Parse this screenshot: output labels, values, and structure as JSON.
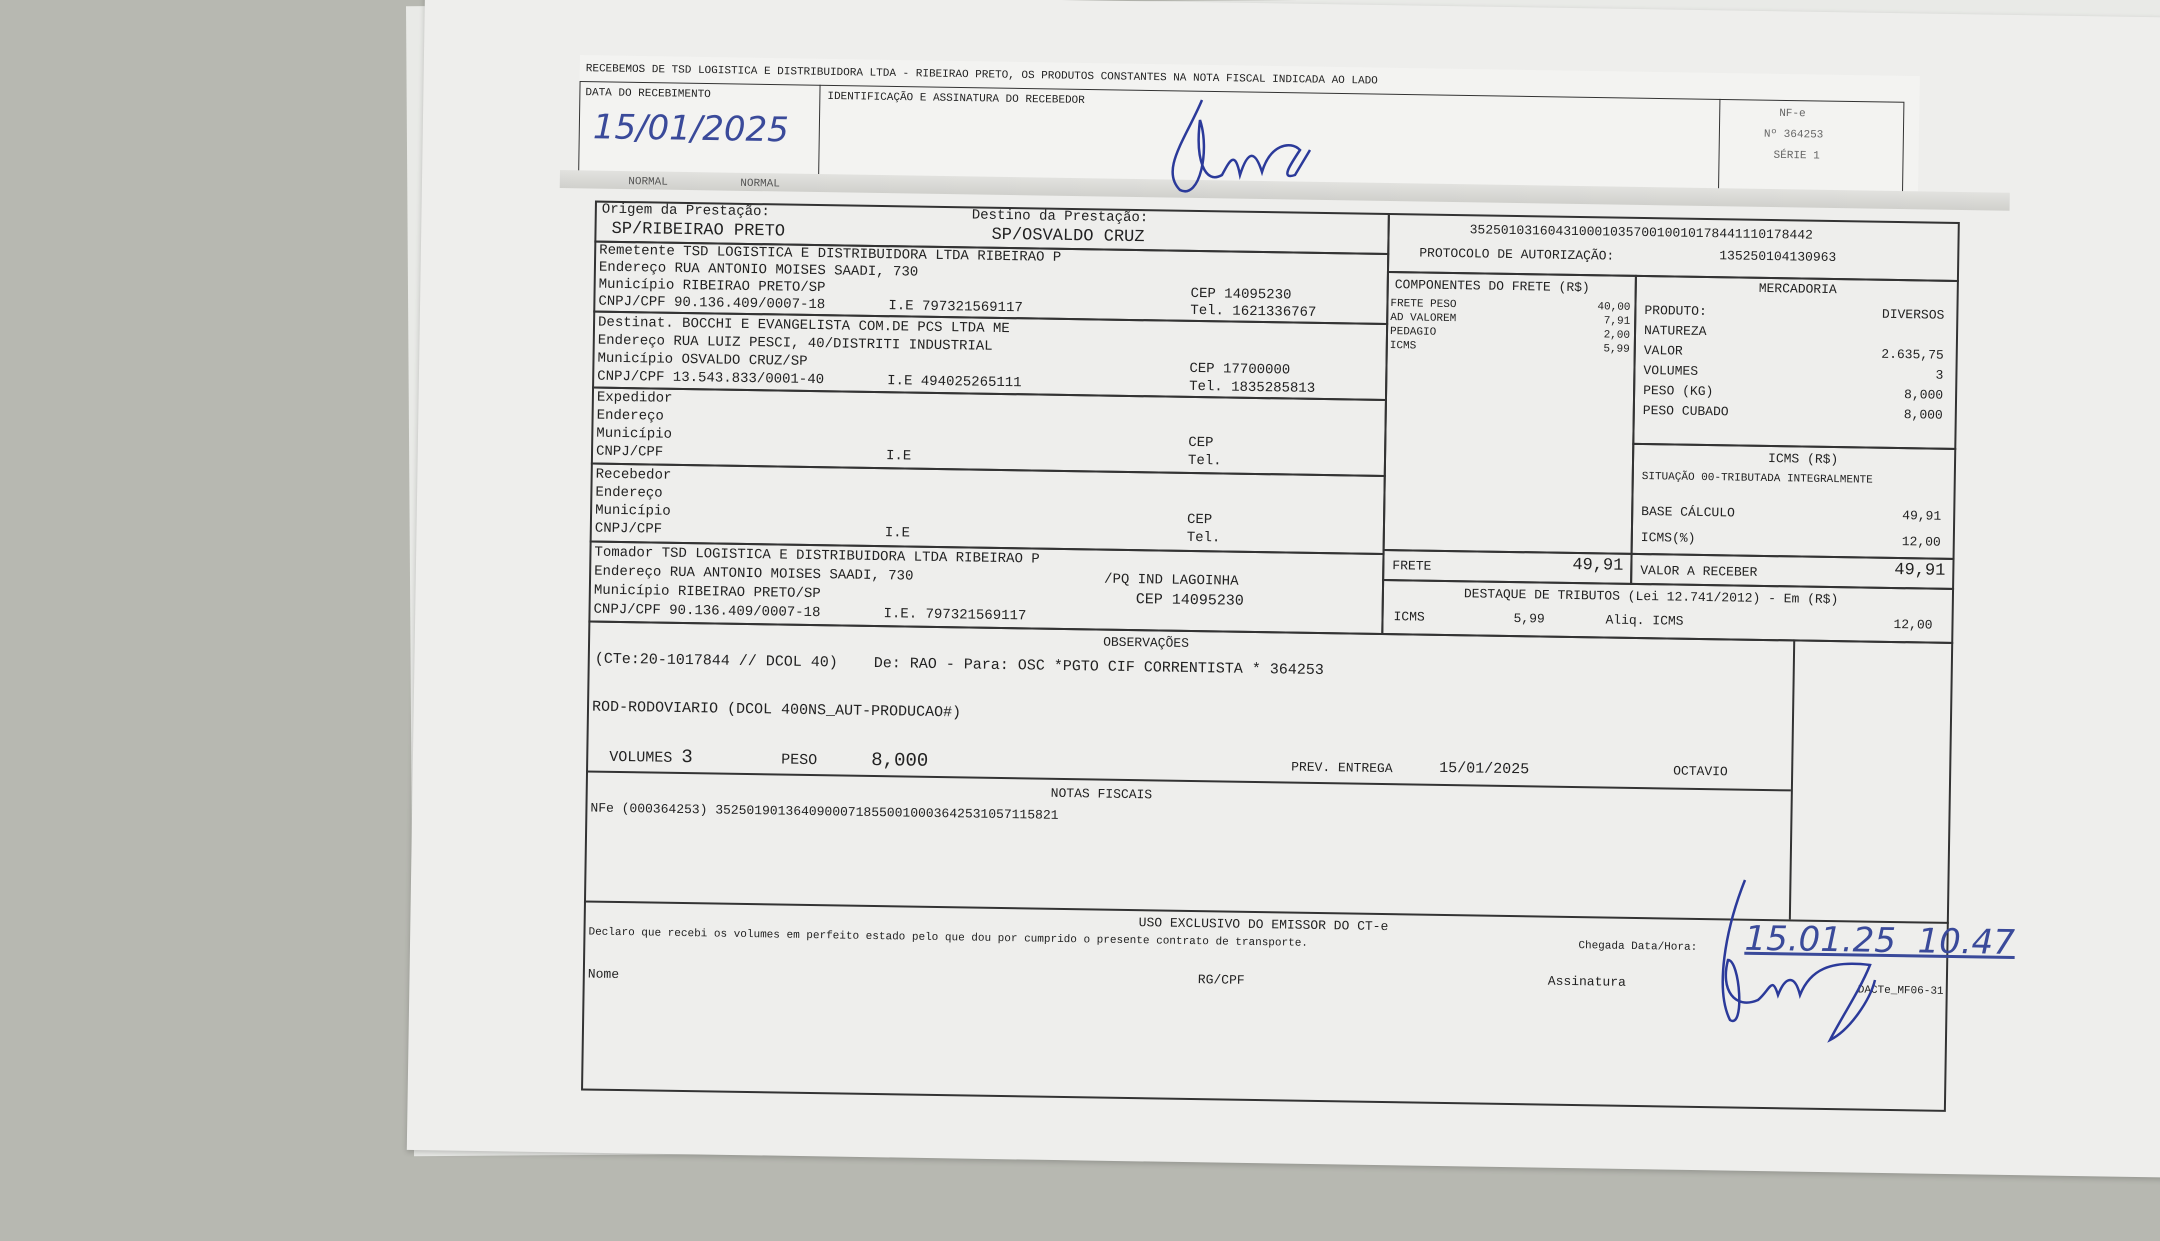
{
  "stub": {
    "header": "RECEBEMOS DE TSD LOGISTICA E DISTRIBUIDORA LTDA - RIBEIRAO PRETO, OS PRODUTOS CONSTANTES NA NOTA FISCAL INDICADA AO LADO",
    "date_label": "DATA DO RECEBIMENTO",
    "date_value": "15/01/2025",
    "id_label": "IDENTIFICAÇÃO E ASSINATURA DO RECEBEDOR",
    "nf_label": "NF-e",
    "nf_number": "Nº 364253",
    "serie": "SÉRIE 1"
  },
  "top": {
    "normal1": "NORMAL",
    "normal2": "NORMAL",
    "origem_label": "Origem da Prestação:",
    "origem": "SP/RIBEIRAO PRETO",
    "destino_label": "Destino da Prestação:",
    "destino": "SP/OSVALDO CRUZ",
    "chave": "35250103160431000103570010010178441110178442",
    "protocolo_label": "PROTOCOLO DE AUTORIZAÇÃO:",
    "protocolo": "135250104130963"
  },
  "remetente": {
    "label": "Remetente",
    "nome": "TSD LOGISTICA E DISTRIBUIDORA LTDA RIBEIRAO P",
    "end_label": "Endereço",
    "endereco": "RUA ANTONIO MOISES SAADI, 730",
    "mun_label": "Município",
    "municipio": "RIBEIRAO PRETO/SP",
    "cnpj_label": "CNPJ/CPF",
    "cnpj": "90.136.409/0007-18",
    "ie_label": "I.E",
    "ie": "797321569117",
    "cep_label": "CEP",
    "cep": "14095230",
    "tel_label": "Tel.",
    "tel": "1621336767"
  },
  "destinatario": {
    "label": "Destinat.",
    "nome": "BOCCHI E EVANGELISTA COM.DE PCS LTDA ME",
    "end_label": "Endereço",
    "endereco": "RUA LUIZ PESCI, 40/DISTRITI INDUSTRIAL",
    "mun_label": "Município",
    "municipio": "OSVALDO CRUZ/SP",
    "cnpj_label": "CNPJ/CPF",
    "cnpj": "13.543.833/0001-40",
    "ie_label": "I.E",
    "ie": "494025265111",
    "cep_label": "CEP",
    "cep": "17700000",
    "tel_label": "Tel.",
    "tel": "1835285813"
  },
  "expedidor": {
    "label": "Expedidor",
    "end_label": "Endereço",
    "mun_label": "Município",
    "cnpj_label": "CNPJ/CPF",
    "ie_label": "I.E",
    "cep_label": "CEP",
    "tel_label": "Tel."
  },
  "recebedor": {
    "label": "Recebedor",
    "end_label": "Endereço",
    "mun_label": "Município",
    "cnpj_label": "CNPJ/CPF",
    "ie_label": "I.E",
    "cep_label": "CEP",
    "tel_label": "Tel."
  },
  "tomador": {
    "label": "Tomador",
    "nome": "TSD LOGISTICA E DISTRIBUIDORA LTDA RIBEIRAO P",
    "end_label": "Endereço",
    "endereco": "RUA ANTONIO MOISES SAADI, 730",
    "bairro": "/PQ IND LAGOINHA",
    "mun_label": "Município",
    "municipio": "RIBEIRAO PRETO/SP",
    "cep_label": "CEP",
    "cep": "14095230",
    "cnpj_label": "CNPJ/CPF",
    "cnpj": "90.136.409/0007-18",
    "ie_label": "I.E.",
    "ie": "797321569117"
  },
  "componentes": {
    "title": "COMPONENTES DO FRETE (R$)",
    "items": [
      {
        "label": "FRETE PESO",
        "value": "40,00"
      },
      {
        "label": "AD VALOREM",
        "value": "7,91"
      },
      {
        "label": "PEDAGIO",
        "value": "2,00"
      },
      {
        "label": "ICMS",
        "value": "5,99"
      }
    ],
    "frete_label": "FRETE",
    "frete": "49,91"
  },
  "mercadoria": {
    "title": "MERCADORIA",
    "produto_label": "PRODUTO:",
    "produto": "DIVERSOS",
    "natureza_label": "NATUREZA",
    "valor_label": "VALOR",
    "valor": "2.635,75",
    "volumes_label": "VOLUMES",
    "volumes": "3",
    "peso_label": "PESO (KG)",
    "peso": "8,000",
    "cubado_label": "PESO CUBADO",
    "cubado": "8,000"
  },
  "icms": {
    "title": "ICMS (R$)",
    "situacao": "SITUAÇÃO 00-TRIBUTADA INTEGRALMENTE",
    "base_label": "BASE CÁLCULO",
    "base": "49,91",
    "aliq_label": "ICMS(%)",
    "aliq": "12,00",
    "receber_label": "VALOR A RECEBER",
    "receber": "49,91"
  },
  "tributos": {
    "title": "DESTAQUE DE TRIBUTOS (Lei 12.741/2012) - Em (R$)",
    "icms_label": "ICMS",
    "icms": "5,99",
    "aliq_label": "Aliq. ICMS",
    "aliq": "12,00"
  },
  "obs": {
    "title": "OBSERVAÇÕES",
    "line1": "(CTe:20-1017844 // DCOL 40)    De: RAO - Para: OSC *PGTO CIF CORRENTISTA * 364253",
    "line2": "ROD-RODOVIARIO (DCOL 400NS_AUT-PRODUCAO#)",
    "volumes_label": "VOLUMES",
    "volumes": "3",
    "peso_label": "PESO",
    "peso": "8,000",
    "prev_label": "PREV. ENTREGA",
    "prev": "15/01/2025",
    "motorista": "OCTAVIO"
  },
  "notas": {
    "title": "NOTAS FISCAIS",
    "nfe": "NFe (000364253) 35250190136409000718550010003642531057115821"
  },
  "uso": {
    "title": "USO EXCLUSIVO DO EMISSOR DO CT-e",
    "declaro": "Declaro que recebi os volumes em perfeito estado pelo que dou por cumprido o presente contrato de transporte.",
    "chegada_label": "Chegada Data/Hora:",
    "chegada": "15.01.25  10.47",
    "nome_label": "Nome",
    "rg_label": "RG/CPF",
    "assinatura_label": "Assinatura",
    "dacte": "DACTe_MF06-31"
  }
}
